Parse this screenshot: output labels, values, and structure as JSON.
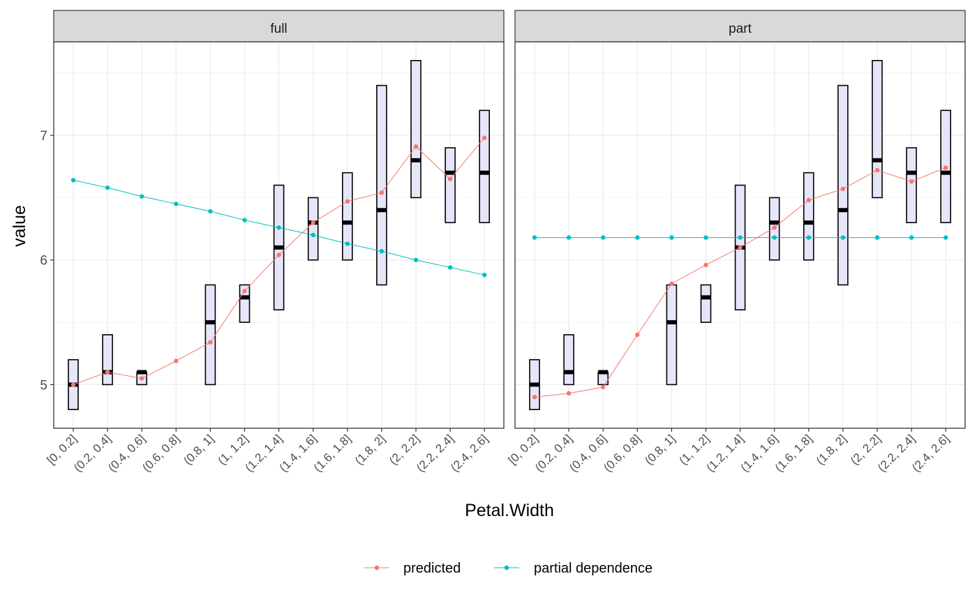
{
  "chart_data": {
    "type": "line",
    "facet_labels": [
      "full",
      "part"
    ],
    "categories": [
      "[0, 0.2]",
      "(0.2, 0.4]",
      "(0.4, 0.6]",
      "(0.6, 0.8]",
      "(0.8, 1]",
      "(1, 1.2]",
      "(1.2, 1.4]",
      "(1.4, 1.6]",
      "(1.6, 1.8]",
      "(1.8, 2]",
      "(2, 2.2]",
      "(2.2, 2.4]",
      "(2.4, 2.6]"
    ],
    "xlabel": "Petal.Width",
    "ylabel": "value",
    "ylim": [
      4.65,
      7.75
    ],
    "yticks": [
      5,
      6,
      7
    ],
    "grid": true,
    "legend_position": "bottom",
    "colors": {
      "predicted": "#F8766D",
      "partial_dependence": "#00BFC4",
      "box_fill": "#E6E6FA",
      "box_stroke": "#000000",
      "strip_fill": "#D9D9D9",
      "grid": "#EBEBEB"
    },
    "legend": [
      "predicted",
      "partial dependence"
    ],
    "boxes": [
      {
        "low": 4.8,
        "mid": 5.0,
        "high": 5.2
      },
      {
        "low": 5.0,
        "mid": 5.1,
        "high": 5.4
      },
      {
        "low": 5.0,
        "mid": 5.1,
        "high": 5.1
      },
      null,
      {
        "low": 5.0,
        "mid": 5.5,
        "high": 5.8
      },
      {
        "low": 5.5,
        "mid": 5.7,
        "high": 5.8
      },
      {
        "low": 5.6,
        "mid": 6.1,
        "high": 6.6
      },
      {
        "low": 6.0,
        "mid": 6.3,
        "high": 6.5
      },
      {
        "low": 6.0,
        "mid": 6.3,
        "high": 6.7
      },
      {
        "low": 5.8,
        "mid": 6.4,
        "high": 7.4
      },
      {
        "low": 6.5,
        "mid": 6.8,
        "high": 7.6
      },
      {
        "low": 6.3,
        "mid": 6.7,
        "high": 6.9
      },
      {
        "low": 6.3,
        "mid": 6.7,
        "high": 7.2
      }
    ],
    "panels": [
      {
        "name": "full",
        "series": [
          {
            "name": "predicted",
            "values": [
              5.0,
              5.1,
              5.05,
              5.19,
              5.34,
              5.75,
              6.04,
              6.3,
              6.47,
              6.54,
              6.91,
              6.65,
              6.98
            ]
          },
          {
            "name": "partial dependence",
            "values": [
              6.64,
              6.58,
              6.51,
              6.45,
              6.39,
              6.32,
              6.26,
              6.2,
              6.13,
              6.07,
              6.0,
              5.94,
              5.88
            ]
          }
        ]
      },
      {
        "name": "part",
        "series": [
          {
            "name": "predicted",
            "values": [
              4.9,
              4.93,
              4.98,
              5.4,
              5.81,
              5.96,
              6.1,
              6.26,
              6.48,
              6.57,
              6.72,
              6.63,
              6.74
            ]
          },
          {
            "name": "partial dependence",
            "values": [
              6.18,
              6.18,
              6.18,
              6.18,
              6.18,
              6.18,
              6.18,
              6.18,
              6.18,
              6.18,
              6.18,
              6.18,
              6.18
            ]
          }
        ]
      }
    ]
  }
}
